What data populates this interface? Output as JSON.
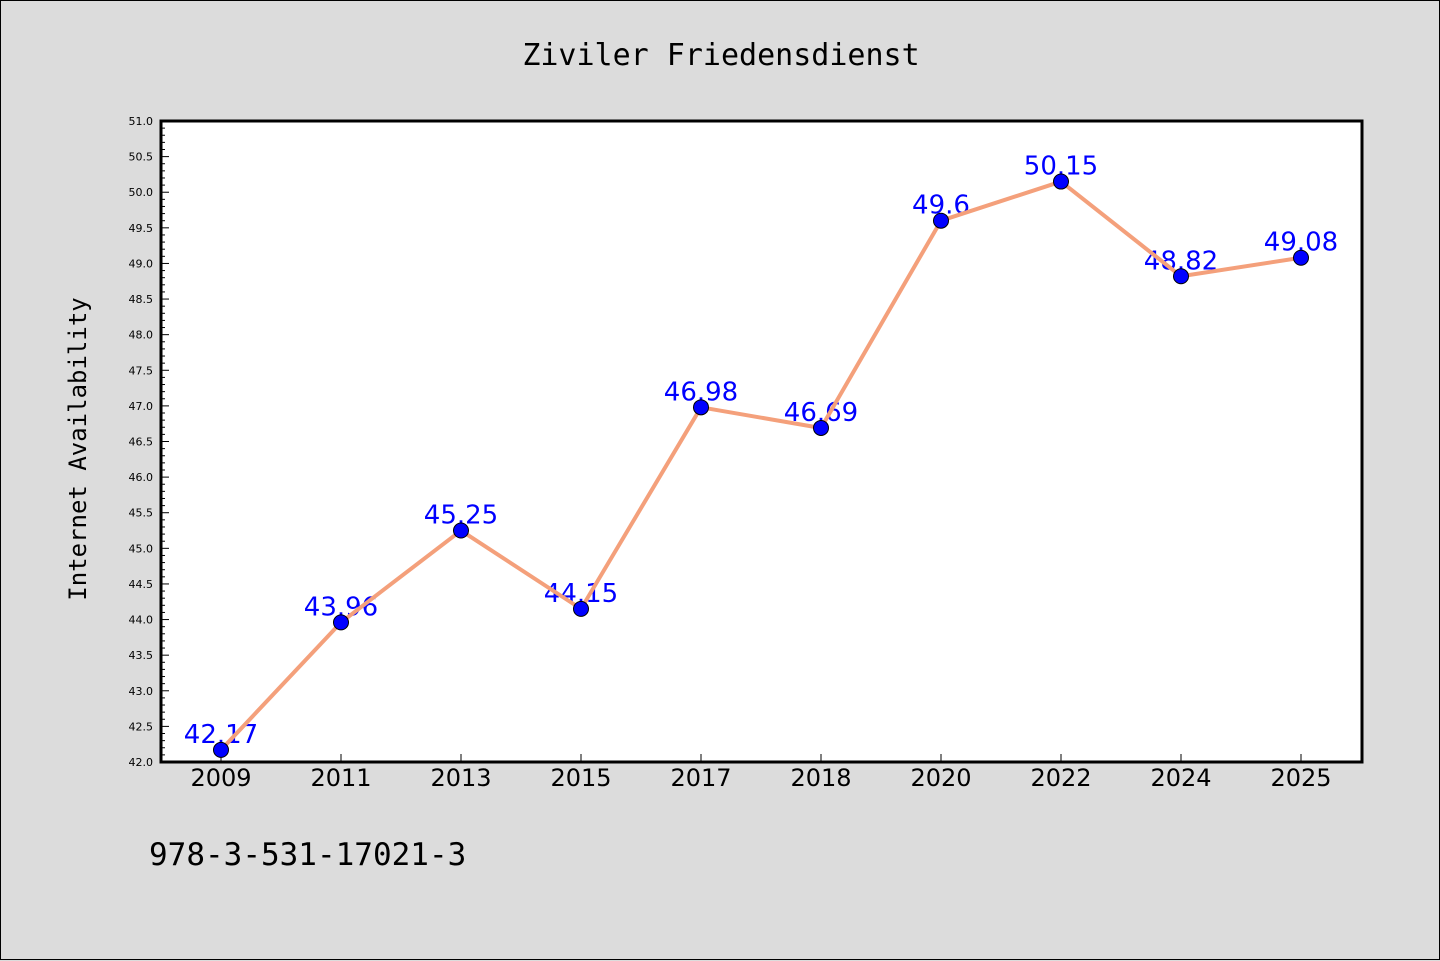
{
  "chart_data": {
    "type": "line",
    "title": "Ziviler Friedensdienst",
    "xlabel": "",
    "ylabel": "Internet Availability",
    "categories": [
      "2009",
      "2011",
      "2013",
      "2015",
      "2017",
      "2018",
      "2020",
      "2022",
      "2024",
      "2025"
    ],
    "values": [
      42.17,
      43.96,
      45.25,
      44.15,
      46.98,
      46.69,
      49.6,
      50.15,
      48.82,
      49.08
    ],
    "data_labels": [
      "42.17",
      "43.96",
      "45.25",
      "44.15",
      "46.98",
      "46.69",
      "49.6",
      "50.15",
      "48.82",
      "49.08"
    ],
    "ylim": [
      42.0,
      51.0
    ],
    "ytick_step": 0.5,
    "grid": false,
    "line_color": "#f4a07b",
    "marker_color": "#0000ff",
    "label_color": "#0000ff",
    "plot_background": "#ffffff",
    "page_background": "#dcdcdc"
  },
  "footer_text": "978-3-531-17021-3"
}
